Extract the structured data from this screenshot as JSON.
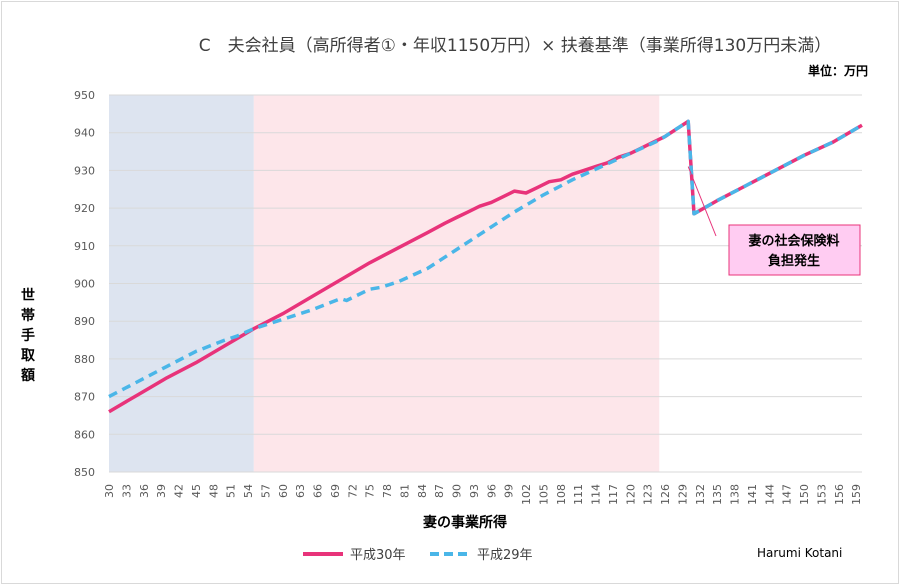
{
  "chart_data": {
    "type": "line",
    "title": "C　夫会社員（高所得者①・年収1150万円）× 扶養基準（事業所得130万円未満）",
    "unit_label": "単位：万円",
    "xlabel": "妻の事業所得",
    "ylabel": "世帯手取額",
    "ylim": [
      850,
      950
    ],
    "y_ticks": [
      850,
      860,
      870,
      880,
      890,
      900,
      910,
      920,
      930,
      940,
      950
    ],
    "x_ticks": [
      "30",
      "33",
      "36",
      "39",
      "42",
      "45",
      "48",
      "51",
      "54",
      "57",
      "60",
      "63",
      "66",
      "69",
      "72",
      "75",
      "78",
      "81",
      "84",
      "87",
      "90",
      "93",
      "96",
      "99",
      "102",
      "105",
      "108",
      "111",
      "114",
      "117",
      "120",
      "123",
      "126",
      "129",
      "132",
      "135",
      "138",
      "141",
      "144",
      "147",
      "150",
      "153",
      "156",
      "159"
    ],
    "x_range": [
      30,
      160
    ],
    "bands": [
      {
        "from": 30,
        "to": 55,
        "color": "#dde4f0"
      },
      {
        "from": 55,
        "to": 125,
        "color": "#fde6ea"
      }
    ],
    "grid": "horizontal",
    "legend_position": "bottom",
    "series": [
      {
        "name": "平成30年",
        "color": "#e8337a",
        "style": "solid",
        "points": [
          [
            30,
            866
          ],
          [
            35,
            870.5
          ],
          [
            40,
            875
          ],
          [
            45,
            879
          ],
          [
            50,
            883.5
          ],
          [
            55,
            888
          ],
          [
            60,
            892
          ],
          [
            65,
            896.5
          ],
          [
            70,
            901
          ],
          [
            75,
            905.5
          ],
          [
            80,
            909.5
          ],
          [
            85,
            913.5
          ],
          [
            88,
            916
          ],
          [
            90,
            917.5
          ],
          [
            92,
            919
          ],
          [
            94,
            920.5
          ],
          [
            96,
            921.5
          ],
          [
            98,
            923
          ],
          [
            100,
            924.5
          ],
          [
            102,
            924
          ],
          [
            104,
            925.5
          ],
          [
            106,
            927
          ],
          [
            108,
            927.5
          ],
          [
            110,
            929
          ],
          [
            112,
            930
          ],
          [
            114,
            931
          ],
          [
            116,
            932
          ],
          [
            118,
            933.5
          ],
          [
            120,
            934.5
          ],
          [
            122,
            936
          ],
          [
            124,
            937.5
          ],
          [
            126,
            939
          ],
          [
            128,
            941
          ],
          [
            130,
            943
          ],
          [
            131,
            918.5
          ],
          [
            135,
            922
          ],
          [
            140,
            926
          ],
          [
            145,
            930
          ],
          [
            150,
            934
          ],
          [
            155,
            937.5
          ],
          [
            160,
            942
          ]
        ]
      },
      {
        "name": "平成29年",
        "color": "#4ab6e8",
        "style": "dashed",
        "points": [
          [
            30,
            870
          ],
          [
            35,
            874
          ],
          [
            40,
            878
          ],
          [
            45,
            882
          ],
          [
            50,
            885
          ],
          [
            52,
            886
          ],
          [
            55,
            888
          ],
          [
            60,
            890.5
          ],
          [
            65,
            893
          ],
          [
            70,
            896
          ],
          [
            71,
            895.5
          ],
          [
            75,
            898.5
          ],
          [
            77,
            899
          ],
          [
            80,
            900.5
          ],
          [
            85,
            904
          ],
          [
            90,
            909
          ],
          [
            95,
            914
          ],
          [
            100,
            919
          ],
          [
            105,
            923.5
          ],
          [
            110,
            927.5
          ],
          [
            115,
            931
          ],
          [
            120,
            934.5
          ],
          [
            125,
            938
          ],
          [
            128,
            941
          ],
          [
            130,
            943
          ],
          [
            131,
            918.5
          ],
          [
            135,
            922
          ],
          [
            140,
            926
          ],
          [
            145,
            930
          ],
          [
            150,
            934
          ],
          [
            155,
            937.5
          ],
          [
            160,
            942
          ]
        ]
      }
    ],
    "annotation": {
      "text_line1": "妻の社会保険料",
      "text_line2": "負担発生",
      "box_color": "#ffccf2",
      "box_border": "#e8337a",
      "points_to": [
        130,
        931
      ]
    },
    "credit": "Harumi Kotani"
  }
}
